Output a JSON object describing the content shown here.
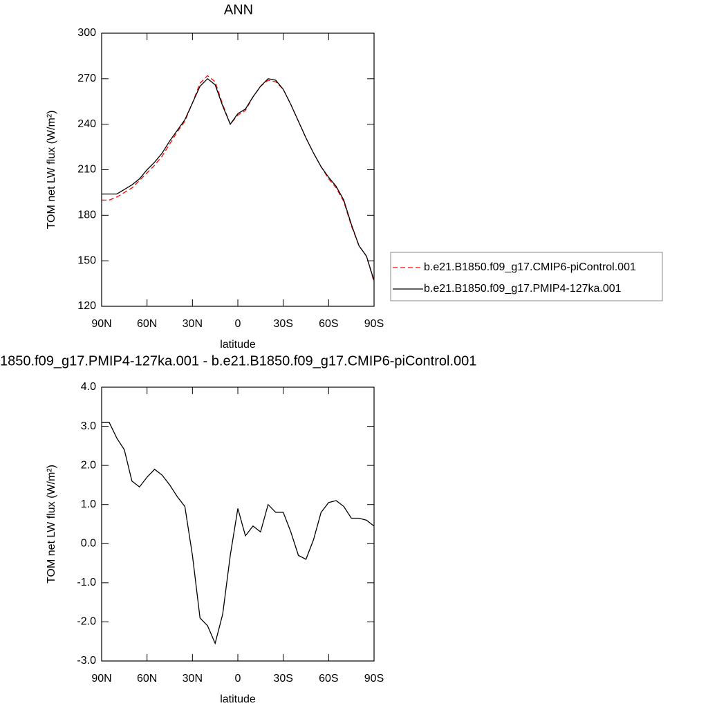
{
  "chart_data": [
    {
      "type": "line",
      "title": "ANN",
      "xlabel": "latitude",
      "ylabel": "TOM net LW flux (W/m²)",
      "x": [
        90,
        85,
        80,
        75,
        70,
        65,
        60,
        55,
        50,
        45,
        40,
        35,
        30,
        25,
        20,
        15,
        10,
        5,
        0,
        -5,
        -10,
        -15,
        -20,
        -25,
        -30,
        -35,
        -40,
        -45,
        -50,
        -55,
        -60,
        -65,
        -70,
        -75,
        -80,
        -85,
        -90
      ],
      "series": [
        {
          "name": "b.e21.B1850.f09_g17.CMIP6-piControl.001",
          "color": "#ff0000",
          "dashed": true,
          "values": [
            190,
            190,
            192,
            195,
            198,
            203,
            208,
            213,
            219,
            227,
            235,
            242,
            254,
            267,
            272,
            268,
            253,
            240,
            246,
            249,
            258,
            265,
            269,
            268,
            263,
            253,
            242,
            231,
            221,
            212,
            204,
            198,
            189,
            173,
            160,
            153,
            136
          ]
        },
        {
          "name": "b.e21.B1850.f09_g17.PMIP4-127ka.001",
          "color": "#000000",
          "dashed": false,
          "values": [
            194,
            194,
            194,
            197,
            200,
            204,
            210,
            215,
            221,
            229,
            236,
            243,
            254,
            265,
            270,
            266,
            252,
            240,
            247,
            250,
            258,
            265,
            270,
            269,
            263,
            253,
            242,
            231,
            221,
            212,
            205,
            199,
            190,
            174,
            160,
            153,
            137
          ]
        }
      ],
      "xlim": [
        90,
        -90
      ],
      "xticks": [
        {
          "value": 90,
          "label": "90N"
        },
        {
          "value": 60,
          "label": "60N"
        },
        {
          "value": 30,
          "label": "30N"
        },
        0,
        {
          "value": -30,
          "label": "30S"
        },
        {
          "value": -60,
          "label": "60S"
        },
        {
          "value": -90,
          "label": "90S"
        }
      ],
      "ylim": [
        120,
        300
      ],
      "yticks": [
        120,
        150,
        180,
        210,
        240,
        270,
        300
      ],
      "legend": "right"
    },
    {
      "type": "line",
      "title": "1850.f09_g17.PMIP4-127ka.001 - b.e21.B1850.f09_g17.CMIP6-piControl.001",
      "xlabel": "latitude",
      "ylabel": "TOM net LW flux (W/m²)",
      "x": [
        90,
        85,
        80,
        75,
        70,
        65,
        60,
        55,
        50,
        45,
        40,
        35,
        30,
        25,
        20,
        15,
        10,
        5,
        0,
        -5,
        -10,
        -15,
        -20,
        -25,
        -30,
        -35,
        -40,
        -45,
        -50,
        -55,
        -60,
        -65,
        -70,
        -75,
        -80,
        -85,
        -90
      ],
      "series": [
        {
          "color": "#000000",
          "dashed": false,
          "values": [
            3.1,
            3.1,
            2.7,
            2.4,
            1.6,
            1.45,
            1.7,
            1.9,
            1.75,
            1.5,
            1.2,
            0.95,
            -0.3,
            -1.9,
            -2.1,
            -2.55,
            -1.8,
            -0.3,
            0.9,
            0.2,
            0.45,
            0.3,
            1.0,
            0.8,
            0.8,
            0.3,
            -0.3,
            -0.4,
            0.1,
            0.8,
            1.05,
            1.1,
            0.95,
            0.65,
            0.65,
            0.6,
            0.45
          ]
        }
      ],
      "xlim": [
        90,
        -90
      ],
      "xticks": [
        {
          "value": 90,
          "label": "90N"
        },
        {
          "value": 60,
          "label": "60N"
        },
        {
          "value": 30,
          "label": "30N"
        },
        0,
        {
          "value": -30,
          "label": "30S"
        },
        {
          "value": -60,
          "label": "60S"
        },
        {
          "value": -90,
          "label": "90S"
        }
      ],
      "ylim": [
        -3,
        4
      ],
      "yticks": [
        {
          "value": -3,
          "label": "-3.0"
        },
        {
          "value": -2,
          "label": "-2.0"
        },
        {
          "value": -1,
          "label": "-1.0"
        },
        {
          "value": 0,
          "label": "0.0"
        },
        {
          "value": 1,
          "label": "1.0"
        },
        {
          "value": 2,
          "label": "2.0"
        },
        {
          "value": 3,
          "label": "3.0"
        },
        {
          "value": 4,
          "label": "4.0"
        }
      ]
    }
  ]
}
